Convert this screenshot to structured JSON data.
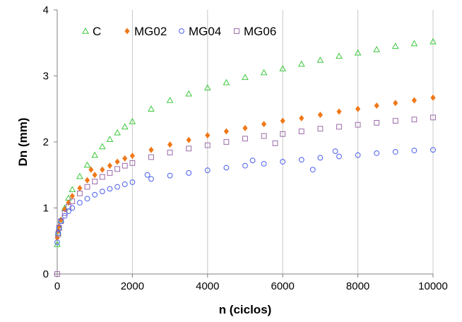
{
  "chart_data": {
    "type": "scatter",
    "title": "",
    "xlabel": "n (ciclos)",
    "ylabel": "Dn (mm)",
    "xlim": [
      0,
      10000
    ],
    "ylim": [
      0,
      4
    ],
    "x_ticks": [
      0,
      2000,
      4000,
      6000,
      8000,
      10000
    ],
    "y_ticks": [
      0,
      1,
      2,
      3,
      4
    ],
    "x_tick_labels": [
      "0",
      "2000",
      "4000",
      "6000",
      "8000",
      "10000"
    ],
    "y_tick_labels": [
      "0",
      "1",
      "2",
      "3",
      "4"
    ],
    "grid": "vertical",
    "legend_position": "top-left",
    "series": [
      {
        "name": "C",
        "marker": "triangle-open",
        "color": "#3cc83c",
        "points": [
          [
            0,
            0.45
          ],
          [
            25,
            0.62
          ],
          [
            50,
            0.7
          ],
          [
            100,
            0.82
          ],
          [
            200,
            1.0
          ],
          [
            300,
            1.15
          ],
          [
            400,
            1.28
          ],
          [
            600,
            1.48
          ],
          [
            800,
            1.65
          ],
          [
            1000,
            1.8
          ],
          [
            1200,
            1.93
          ],
          [
            1400,
            2.04
          ],
          [
            1600,
            2.14
          ],
          [
            1800,
            2.23
          ],
          [
            2000,
            2.31
          ],
          [
            2500,
            2.5
          ],
          [
            3000,
            2.63
          ],
          [
            3500,
            2.73
          ],
          [
            4000,
            2.82
          ],
          [
            4500,
            2.9
          ],
          [
            5000,
            2.98
          ],
          [
            5500,
            3.05
          ],
          [
            6000,
            3.11
          ],
          [
            6500,
            3.18
          ],
          [
            7000,
            3.24
          ],
          [
            7500,
            3.3
          ],
          [
            8000,
            3.35
          ],
          [
            8500,
            3.4
          ],
          [
            9000,
            3.45
          ],
          [
            9500,
            3.49
          ],
          [
            10000,
            3.52
          ]
        ]
      },
      {
        "name": "MG02",
        "marker": "diamond-filled",
        "color": "#f07818",
        "points": [
          [
            0,
            0.55
          ],
          [
            25,
            0.65
          ],
          [
            50,
            0.72
          ],
          [
            100,
            0.82
          ],
          [
            200,
            0.98
          ],
          [
            300,
            1.08
          ],
          [
            400,
            1.18
          ],
          [
            600,
            1.3
          ],
          [
            800,
            1.42
          ],
          [
            900,
            1.58
          ],
          [
            1000,
            1.5
          ],
          [
            1200,
            1.58
          ],
          [
            1400,
            1.64
          ],
          [
            1600,
            1.7
          ],
          [
            1800,
            1.75
          ],
          [
            2000,
            1.79
          ],
          [
            2500,
            1.88
          ],
          [
            3000,
            1.96
          ],
          [
            3500,
            2.03
          ],
          [
            4000,
            2.1
          ],
          [
            4500,
            2.16
          ],
          [
            5000,
            2.21
          ],
          [
            5500,
            2.27
          ],
          [
            6000,
            2.32
          ],
          [
            6500,
            2.36
          ],
          [
            7000,
            2.41
          ],
          [
            7500,
            2.46
          ],
          [
            8000,
            2.5
          ],
          [
            8500,
            2.55
          ],
          [
            9000,
            2.59
          ],
          [
            9500,
            2.63
          ],
          [
            10000,
            2.67
          ]
        ]
      },
      {
        "name": "MG04",
        "marker": "circle-open",
        "color": "#4a5ef0",
        "points": [
          [
            0,
            0.48
          ],
          [
            25,
            0.62
          ],
          [
            50,
            0.7
          ],
          [
            100,
            0.8
          ],
          [
            200,
            0.88
          ],
          [
            300,
            0.95
          ],
          [
            400,
            1.0
          ],
          [
            600,
            1.08
          ],
          [
            800,
            1.14
          ],
          [
            1000,
            1.2
          ],
          [
            1200,
            1.25
          ],
          [
            1400,
            1.29
          ],
          [
            1600,
            1.32
          ],
          [
            1800,
            1.36
          ],
          [
            2000,
            1.39
          ],
          [
            2400,
            1.5
          ],
          [
            2500,
            1.44
          ],
          [
            3000,
            1.49
          ],
          [
            3500,
            1.53
          ],
          [
            4000,
            1.57
          ],
          [
            4500,
            1.61
          ],
          [
            5000,
            1.64
          ],
          [
            5200,
            1.72
          ],
          [
            5500,
            1.67
          ],
          [
            6000,
            1.7
          ],
          [
            6500,
            1.73
          ],
          [
            6800,
            1.58
          ],
          [
            7000,
            1.76
          ],
          [
            7400,
            1.86
          ],
          [
            7500,
            1.78
          ],
          [
            8000,
            1.8
          ],
          [
            8500,
            1.83
          ],
          [
            9000,
            1.85
          ],
          [
            9500,
            1.87
          ],
          [
            10000,
            1.88
          ]
        ]
      },
      {
        "name": "MG06",
        "marker": "square-open",
        "color": "#9a6aa8",
        "points": [
          [
            0,
            0.0
          ],
          [
            25,
            0.6
          ],
          [
            50,
            0.7
          ],
          [
            100,
            0.8
          ],
          [
            200,
            0.92
          ],
          [
            300,
            1.02
          ],
          [
            400,
            1.1
          ],
          [
            600,
            1.22
          ],
          [
            800,
            1.32
          ],
          [
            1000,
            1.4
          ],
          [
            1200,
            1.47
          ],
          [
            1400,
            1.53
          ],
          [
            1600,
            1.59
          ],
          [
            1800,
            1.64
          ],
          [
            2000,
            1.68
          ],
          [
            2500,
            1.77
          ],
          [
            3000,
            1.84
          ],
          [
            3500,
            1.9
          ],
          [
            4000,
            1.95
          ],
          [
            4500,
            2.0
          ],
          [
            5000,
            2.05
          ],
          [
            5500,
            2.09
          ],
          [
            5800,
            1.98
          ],
          [
            6000,
            2.12
          ],
          [
            6500,
            2.16
          ],
          [
            7000,
            2.2
          ],
          [
            7500,
            2.23
          ],
          [
            8000,
            2.26
          ],
          [
            8500,
            2.29
          ],
          [
            9000,
            2.32
          ],
          [
            9500,
            2.34
          ],
          [
            10000,
            2.37
          ]
        ]
      }
    ]
  }
}
